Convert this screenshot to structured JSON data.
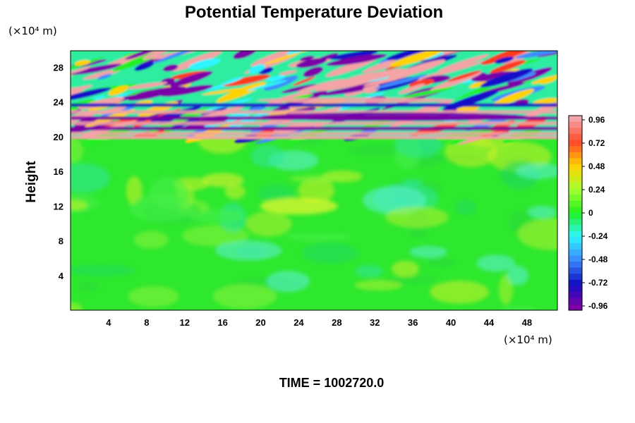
{
  "chart_data": {
    "type": "heatmap",
    "title": "Potential Temperature Deviation",
    "ylabel": "Height",
    "x_unit": "(×10⁴ m)",
    "y_unit": "(×10⁴ m)",
    "x_ticks": [
      4,
      8,
      12,
      16,
      20,
      24,
      28,
      32,
      36,
      40,
      44,
      48
    ],
    "y_ticks": [
      4,
      8,
      12,
      16,
      20,
      24,
      28
    ],
    "xlim": [
      0,
      51.2
    ],
    "ylim": [
      0,
      29.9
    ],
    "colorbar": {
      "ticks": [
        "0.96",
        "0.72",
        "0.48",
        "0.24",
        "0",
        "-0.24",
        "-0.48",
        "-0.72",
        "-0.96"
      ],
      "range": [
        -0.96,
        0.96
      ],
      "colors": [
        "#f4a3a6",
        "#ff4a2a",
        "#ffd200",
        "#a8ff30",
        "#20f020",
        "#2df5ff",
        "#3c8bff",
        "#1010c0",
        "#7a00a8"
      ]
    },
    "features": [
      {
        "desc_value": "lower region mostly near 0",
        "x": [
          0,
          51.2
        ],
        "y": [
          0,
          20
        ],
        "value": 0.0
      },
      {
        "desc_value": "upper layer alternating extremes",
        "x": [
          0,
          51.2
        ],
        "y": [
          20,
          29.9
        ],
        "value_range": [
          -0.96,
          0.96
        ]
      },
      {
        "x": 24,
        "y": 12,
        "value": 0.3
      },
      {
        "x": 36,
        "y": 22,
        "value": -0.96
      },
      {
        "x": 24,
        "y": 21,
        "value": 0.96
      }
    ],
    "footer": "TIME = 1002720.0"
  }
}
